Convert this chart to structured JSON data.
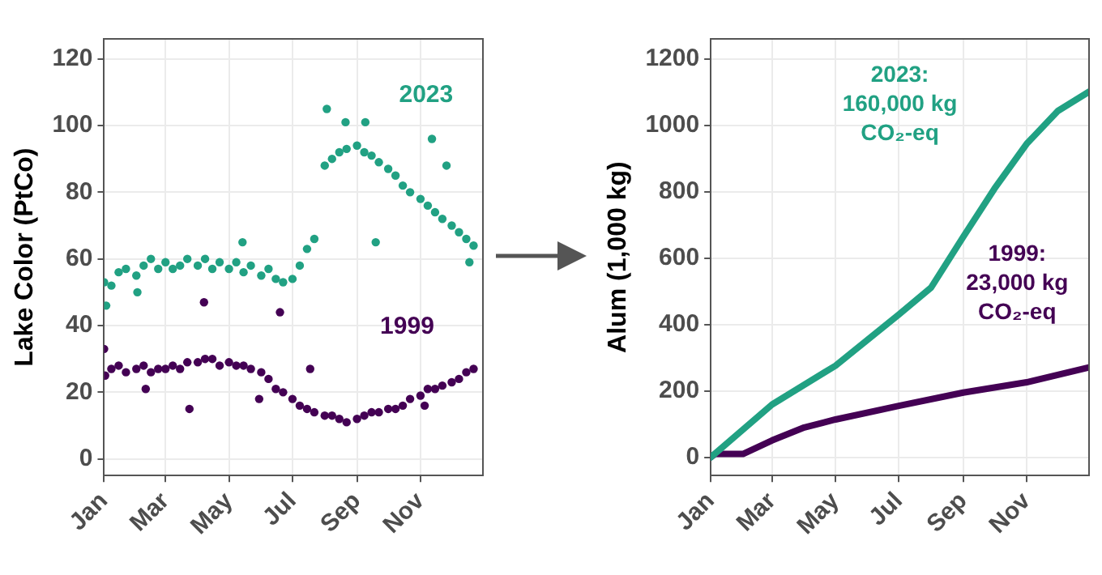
{
  "chart_data": [
    {
      "type": "scatter",
      "ylabel": "Lake Color (PtCo)",
      "xlim": [
        "--01-01",
        "--12-31"
      ],
      "xticks": [
        {
          "value": "--01-01",
          "label": "Jan"
        },
        {
          "value": "--03-01",
          "label": "Mar"
        },
        {
          "value": "--05-01",
          "label": "May"
        },
        {
          "value": "--07-01",
          "label": "Jul"
        },
        {
          "value": "--09-01",
          "label": "Sep"
        },
        {
          "value": "--11-01",
          "label": "Nov"
        }
      ],
      "ylim": [
        -5,
        126
      ],
      "yticks": [
        0,
        20,
        40,
        60,
        80,
        100,
        120
      ],
      "grid": true,
      "marker": "circle",
      "series": [
        {
          "name": "2023",
          "color": "#21a183",
          "x": [
            "--01-01",
            "--01-03",
            "--01-08",
            "--01-15",
            "--01-22",
            "--02-01",
            "--02-02",
            "--02-08",
            "--02-15",
            "--02-22",
            "--03-01",
            "--03-08",
            "--03-15",
            "--03-22",
            "--04-01",
            "--04-08",
            "--04-15",
            "--04-22",
            "--05-01",
            "--05-08",
            "--05-14",
            "--05-15",
            "--05-22",
            "--06-01",
            "--06-08",
            "--06-15",
            "--06-22",
            "--07-01",
            "--07-08",
            "--07-15",
            "--07-22",
            "--08-01",
            "--08-03",
            "--08-08",
            "--08-15",
            "--08-21",
            "--08-22",
            "--09-01",
            "--09-08",
            "--09-09",
            "--09-15",
            "--09-19",
            "--09-22",
            "--10-01",
            "--10-08",
            "--10-15",
            "--10-22",
            "--11-01",
            "--11-08",
            "--11-12",
            "--11-15",
            "--11-22",
            "--11-26",
            "--12-01",
            "--12-08",
            "--12-15",
            "--12-18",
            "--12-22"
          ],
          "values": [
            53,
            46,
            52,
            56,
            57,
            55,
            50,
            58,
            60,
            57,
            59,
            57,
            58,
            60,
            58,
            60,
            57,
            59,
            57,
            59,
            65,
            56,
            58,
            55,
            57,
            54,
            53,
            54,
            58,
            63,
            66,
            88,
            105,
            90,
            92,
            101,
            93,
            94,
            92,
            101,
            91,
            65,
            89,
            87,
            85,
            82,
            80,
            78,
            76,
            96,
            74,
            72,
            88,
            70,
            68,
            66,
            59,
            64
          ]
        },
        {
          "name": "1999",
          "color": "#440154",
          "x": [
            "--01-01",
            "--01-02",
            "--01-08",
            "--01-15",
            "--01-22",
            "--02-01",
            "--02-08",
            "--02-10",
            "--02-15",
            "--02-22",
            "--03-01",
            "--03-08",
            "--03-15",
            "--03-22",
            "--03-24",
            "--04-01",
            "--04-07",
            "--04-08",
            "--04-15",
            "--04-22",
            "--05-01",
            "--05-08",
            "--05-15",
            "--05-22",
            "--05-30",
            "--06-01",
            "--06-08",
            "--06-15",
            "--06-19",
            "--06-22",
            "--07-01",
            "--07-08",
            "--07-15",
            "--07-18",
            "--07-22",
            "--08-01",
            "--08-08",
            "--08-15",
            "--08-22",
            "--09-01",
            "--09-08",
            "--09-15",
            "--09-22",
            "--10-01",
            "--10-08",
            "--10-15",
            "--10-22",
            "--11-01",
            "--11-05",
            "--11-08",
            "--11-15",
            "--11-22",
            "--12-01",
            "--12-08",
            "--12-15",
            "--12-22"
          ],
          "values": [
            33,
            25,
            27,
            28,
            26,
            27,
            28,
            21,
            26,
            27,
            27,
            28,
            27,
            29,
            15,
            29,
            47,
            30,
            30,
            28,
            29,
            28,
            28,
            27,
            18,
            26,
            24,
            21,
            44,
            20,
            18,
            16,
            15,
            27,
            14,
            13,
            13,
            12,
            11,
            12,
            13,
            14,
            14,
            15,
            15,
            16,
            18,
            19,
            16,
            21,
            21,
            22,
            23,
            24,
            26,
            27
          ]
        }
      ]
    },
    {
      "type": "line",
      "ylabel": "Alum (1,000 kg)",
      "xlim": [
        "--01-01",
        "--12-31"
      ],
      "xticks": [
        {
          "value": "--01-01",
          "label": "Jan"
        },
        {
          "value": "--03-01",
          "label": "Mar"
        },
        {
          "value": "--05-01",
          "label": "May"
        },
        {
          "value": "--07-01",
          "label": "Jul"
        },
        {
          "value": "--09-01",
          "label": "Sep"
        },
        {
          "value": "--11-01",
          "label": "Nov"
        }
      ],
      "ylim": [
        -55,
        1260
      ],
      "yticks": [
        0,
        200,
        400,
        600,
        800,
        1000,
        1200
      ],
      "grid": true,
      "annotations": [
        "2023: 160,000 kg CO₂-eq",
        "1999: 23,000 kg CO₂-eq"
      ],
      "series": [
        {
          "color": "#21a183",
          "x": [
            "--01-01",
            "--03-01",
            "--05-01",
            "--07-01",
            "--08-01",
            "--09-01",
            "--10-01",
            "--11-01",
            "--12-01",
            "--12-31"
          ],
          "values": [
            0,
            159,
            276,
            430,
            511,
            664,
            809,
            944,
            1043,
            1101
          ]
        },
        {
          "color": "#440154",
          "x": [
            "--01-01",
            "--01-05",
            "--02-01",
            "--03-01",
            "--04-01",
            "--05-01",
            "--07-01",
            "--09-01",
            "--11-01",
            "--12-31"
          ],
          "values": [
            0,
            10,
            10,
            51,
            90,
            114,
            155,
            195,
            226,
            271
          ]
        }
      ]
    }
  ]
}
